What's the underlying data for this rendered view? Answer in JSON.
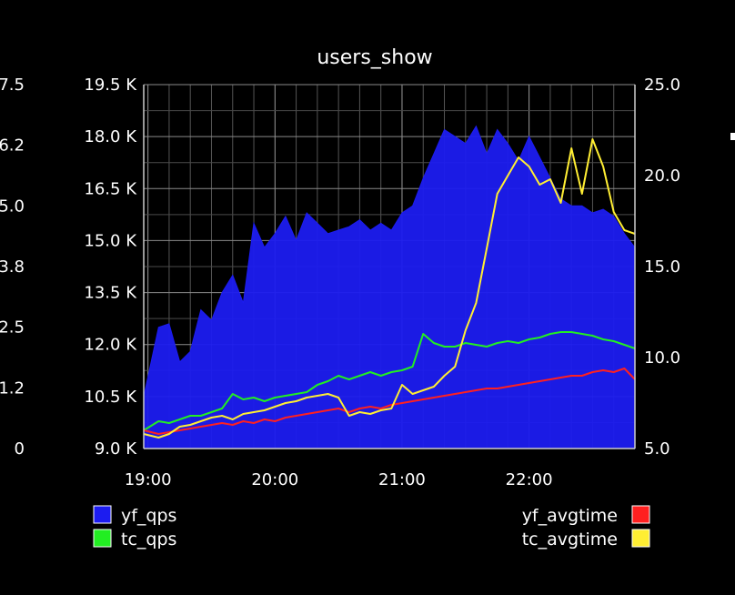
{
  "chart_data": {
    "type": "line",
    "title": "users_show",
    "x_ticks": [
      "19:00",
      "20:00",
      "21:00",
      "22:00"
    ],
    "x_range": [
      "18:58",
      "22:50"
    ],
    "y_left": {
      "ticks": [
        "9.0 K",
        "10.5 K",
        "12.0 K",
        "13.5 K",
        "15.0 K",
        "16.5 K",
        "18.0 K",
        "19.5 K"
      ],
      "min": 9000,
      "max": 19500
    },
    "y_right": {
      "ticks": [
        "5.0",
        "10.0",
        "15.0",
        "20.0",
        "25.0"
      ],
      "min": 5,
      "max": 25
    },
    "left_partial_ticks": [
      "7.5",
      "6.2",
      "5.0",
      "3.8",
      "2.5",
      "1.2",
      "0"
    ],
    "grid": true,
    "series": [
      {
        "name": "yf_qps",
        "axis": "left",
        "style": "area",
        "color": "#1c1cf0",
        "x": [
          "18:58",
          "19:05",
          "19:10",
          "19:15",
          "19:20",
          "19:25",
          "19:30",
          "19:35",
          "19:40",
          "19:45",
          "19:50",
          "19:55",
          "20:00",
          "20:05",
          "20:10",
          "20:15",
          "20:20",
          "20:25",
          "20:30",
          "20:35",
          "20:40",
          "20:45",
          "20:50",
          "20:55",
          "21:00",
          "21:05",
          "21:10",
          "21:15",
          "21:20",
          "21:25",
          "21:30",
          "21:35",
          "21:40",
          "21:45",
          "21:50",
          "21:55",
          "22:00",
          "22:05",
          "22:10",
          "22:15",
          "22:20",
          "22:25",
          "22:30",
          "22:35",
          "22:40",
          "22:45",
          "22:50"
        ],
        "values": [
          10500,
          12500,
          12600,
          11500,
          11800,
          13000,
          12700,
          13500,
          14000,
          13200,
          15500,
          14800,
          15200,
          15700,
          15000,
          15800,
          15500,
          15200,
          15300,
          15400,
          15600,
          15300,
          15500,
          15300,
          15800,
          16000,
          16800,
          17500,
          18200,
          18000,
          17800,
          18300,
          17500,
          18200,
          17800,
          17300,
          18000,
          17400,
          16800,
          16200,
          16000,
          16000,
          15800,
          15900,
          15700,
          15200,
          14800
        ]
      },
      {
        "name": "tc_qps",
        "axis": "right",
        "style": "line",
        "color": "#22ee22",
        "x": [
          "18:58",
          "19:05",
          "19:10",
          "19:15",
          "19:20",
          "19:25",
          "19:30",
          "19:35",
          "19:40",
          "19:45",
          "19:50",
          "19:55",
          "20:00",
          "20:05",
          "20:10",
          "20:15",
          "20:20",
          "20:25",
          "20:30",
          "20:35",
          "20:40",
          "20:45",
          "20:50",
          "20:55",
          "21:00",
          "21:05",
          "21:10",
          "21:15",
          "21:20",
          "21:25",
          "21:30",
          "21:35",
          "21:40",
          "21:45",
          "21:50",
          "21:55",
          "22:00",
          "22:05",
          "22:10",
          "22:15",
          "22:20",
          "22:25",
          "22:30",
          "22:35",
          "22:40",
          "22:45",
          "22:50"
        ],
        "values": [
          6.0,
          6.5,
          6.4,
          6.6,
          6.8,
          6.8,
          7.0,
          7.2,
          8.0,
          7.7,
          7.8,
          7.6,
          7.8,
          7.9,
          8.0,
          8.1,
          8.5,
          8.7,
          9.0,
          8.8,
          9.0,
          9.2,
          9.0,
          9.2,
          9.3,
          9.5,
          11.3,
          10.8,
          10.6,
          10.6,
          10.8,
          10.7,
          10.6,
          10.8,
          10.9,
          10.8,
          11.0,
          11.1,
          11.3,
          11.4,
          11.4,
          11.3,
          11.2,
          11.0,
          10.9,
          10.7,
          10.5
        ]
      },
      {
        "name": "yf_avgtime",
        "axis": "right",
        "style": "line",
        "color": "#ff2020",
        "x": [
          "18:58",
          "19:05",
          "19:10",
          "19:15",
          "19:20",
          "19:25",
          "19:30",
          "19:35",
          "19:40",
          "19:45",
          "19:50",
          "19:55",
          "20:00",
          "20:05",
          "20:10",
          "20:15",
          "20:20",
          "20:25",
          "20:30",
          "20:35",
          "20:40",
          "20:45",
          "20:50",
          "20:55",
          "21:00",
          "21:05",
          "21:10",
          "21:15",
          "21:20",
          "21:25",
          "21:30",
          "21:35",
          "21:40",
          "21:45",
          "21:50",
          "21:55",
          "22:00",
          "22:05",
          "22:10",
          "22:15",
          "22:20",
          "22:25",
          "22:30",
          "22:35",
          "22:40",
          "22:45",
          "22:50"
        ],
        "values": [
          6.0,
          5.8,
          5.9,
          6.0,
          6.1,
          6.2,
          6.3,
          6.4,
          6.3,
          6.5,
          6.4,
          6.6,
          6.5,
          6.7,
          6.8,
          6.9,
          7.0,
          7.1,
          7.2,
          7.0,
          7.2,
          7.3,
          7.2,
          7.4,
          7.5,
          7.6,
          7.7,
          7.8,
          7.9,
          8.0,
          8.1,
          8.2,
          8.3,
          8.3,
          8.4,
          8.5,
          8.6,
          8.7,
          8.8,
          8.9,
          9.0,
          9.0,
          9.2,
          9.3,
          9.2,
          9.4,
          8.8
        ]
      },
      {
        "name": "tc_avgtime",
        "axis": "right",
        "style": "line",
        "color": "#ffee33",
        "x": [
          "18:58",
          "19:05",
          "19:10",
          "19:15",
          "19:20",
          "19:25",
          "19:30",
          "19:35",
          "19:40",
          "19:45",
          "19:50",
          "19:55",
          "20:00",
          "20:05",
          "20:10",
          "20:15",
          "20:20",
          "20:25",
          "20:30",
          "20:35",
          "20:40",
          "20:45",
          "20:50",
          "20:55",
          "21:00",
          "21:05",
          "21:10",
          "21:15",
          "21:20",
          "21:25",
          "21:30",
          "21:35",
          "21:40",
          "21:45",
          "21:50",
          "21:55",
          "22:00",
          "22:05",
          "22:10",
          "22:15",
          "22:20",
          "22:25",
          "22:30",
          "22:35",
          "22:40",
          "22:45",
          "22:50"
        ],
        "values": [
          5.8,
          5.6,
          5.8,
          6.2,
          6.3,
          6.5,
          6.7,
          6.8,
          6.6,
          6.9,
          7.0,
          7.1,
          7.3,
          7.5,
          7.6,
          7.8,
          7.9,
          8.0,
          7.8,
          6.8,
          7.0,
          6.9,
          7.1,
          7.2,
          8.5,
          8.0,
          8.2,
          8.4,
          9.0,
          9.5,
          11.5,
          13.0,
          16.0,
          19.0,
          20.0,
          21.0,
          20.5,
          19.5,
          19.8,
          18.5,
          21.5,
          19.0,
          22.0,
          20.5,
          18.0,
          17.0,
          16.8
        ]
      }
    ],
    "legend": [
      "yf_qps",
      "tc_qps",
      "yf_avgtime",
      "tc_avgtime"
    ]
  }
}
